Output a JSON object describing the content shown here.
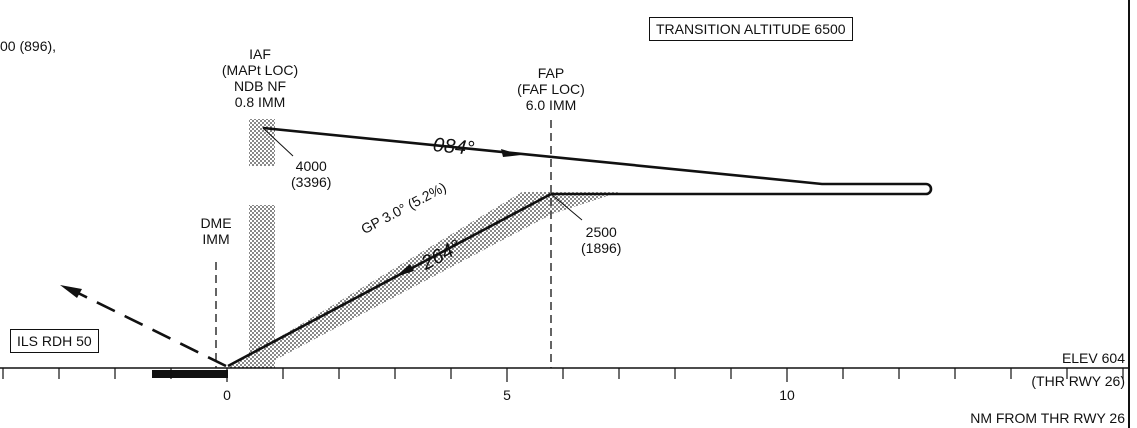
{
  "top_left_text": "00 (896),",
  "transition_altitude": "TRANSITION ALTITUDE 6500",
  "iaf": {
    "line1": "IAF",
    "line2": "(MAPt LOC)",
    "line3": "NDB NF",
    "line4": "0.8 IMM"
  },
  "iaf_alt": {
    "line1": "4000",
    "line2": "(3396)"
  },
  "fap": {
    "line1": "FAP",
    "line2": "(FAF LOC)",
    "line3": "6.0 IMM"
  },
  "fap_alt": {
    "line1": "2500",
    "line2": "(1896)"
  },
  "outbound_course": "084°",
  "inbound_course": "264°",
  "glidepath": "GP 3.0° (5.2%)",
  "dme": {
    "line1": "DME",
    "line2": "IMM"
  },
  "ils_rdh": "ILS RDH 50",
  "elevation": "ELEV 604",
  "threshold": "(THR RWY 26)",
  "distance_axis_caption": "NM FROM THR RWY 26",
  "axis_ticks": [
    "0",
    "5",
    "10"
  ]
}
